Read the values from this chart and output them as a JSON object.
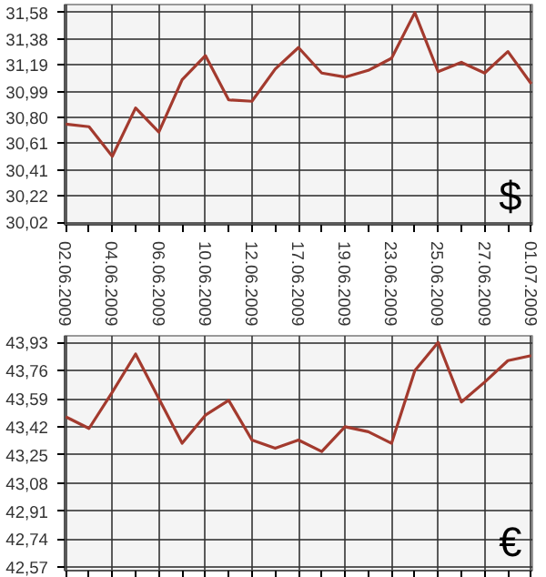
{
  "chart_data": [
    {
      "type": "line",
      "categories": [
        "02.06.2009",
        null,
        "04.06.2009",
        null,
        "06.06.2009",
        null,
        "10.06.2009",
        null,
        "12.06.2009",
        null,
        "17.06.2009",
        null,
        "19.06.2009",
        null,
        "23.06.2009",
        null,
        "25.06.2009",
        null,
        "27.06.2009",
        null,
        "01.07.2009"
      ],
      "series": [
        {
          "color": "#a33a2e",
          "values": [
            30.75,
            30.73,
            30.51,
            30.87,
            30.69,
            31.08,
            31.26,
            30.93,
            30.92,
            31.16,
            31.32,
            31.13,
            31.1,
            31.15,
            31.24,
            31.58,
            31.14,
            31.21,
            31.13,
            31.29,
            31.05
          ]
        }
      ],
      "ylim": [
        30.0,
        31.64
      ],
      "yticks": [
        {
          "value": 30.02,
          "label": "30,02"
        },
        {
          "value": 30.22,
          "label": "30,22"
        },
        {
          "value": 30.41,
          "label": "30,41"
        },
        {
          "value": 30.61,
          "label": "30,61"
        },
        {
          "value": 30.8,
          "label": "30,80"
        },
        {
          "value": 30.99,
          "label": "30,99"
        },
        {
          "value": 31.19,
          "label": "31,19"
        },
        {
          "value": 31.38,
          "label": "31,38"
        },
        {
          "value": 31.58,
          "label": "31,58"
        }
      ],
      "grid": true,
      "annotations": [
        "$"
      ]
    },
    {
      "type": "line",
      "categories": [
        "02.06.2009",
        null,
        "04.06.2009",
        null,
        "06.06.2009",
        null,
        "10.06.2009",
        null,
        "12.06.2009",
        null,
        "17.06.2009",
        null,
        "19.06.2009",
        null,
        "23.06.2009",
        null,
        "25.06.2009",
        null,
        "27.06.2009",
        null,
        "01.07.2009"
      ],
      "series": [
        {
          "color": "#a33a2e",
          "values": [
            43.48,
            43.41,
            43.63,
            43.86,
            43.59,
            43.32,
            43.49,
            43.58,
            43.34,
            43.29,
            43.34,
            43.27,
            43.42,
            43.39,
            43.32,
            43.76,
            43.93,
            43.57,
            43.69,
            43.82,
            43.85
          ]
        }
      ],
      "ylim": [
        42.55,
        43.97
      ],
      "yticks": [
        {
          "value": 42.57,
          "label": "42,57"
        },
        {
          "value": 42.74,
          "label": "42,74"
        },
        {
          "value": 42.91,
          "label": "42,91"
        },
        {
          "value": 43.08,
          "label": "43,08"
        },
        {
          "value": 43.25,
          "label": "43,25"
        },
        {
          "value": 43.42,
          "label": "43,42"
        },
        {
          "value": 43.59,
          "label": "43,59"
        },
        {
          "value": 43.76,
          "label": "43,76"
        },
        {
          "value": 43.93,
          "label": "43,93"
        }
      ],
      "grid": true,
      "tick_labels": "y",
      "annotations": [
        "€"
      ]
    }
  ]
}
